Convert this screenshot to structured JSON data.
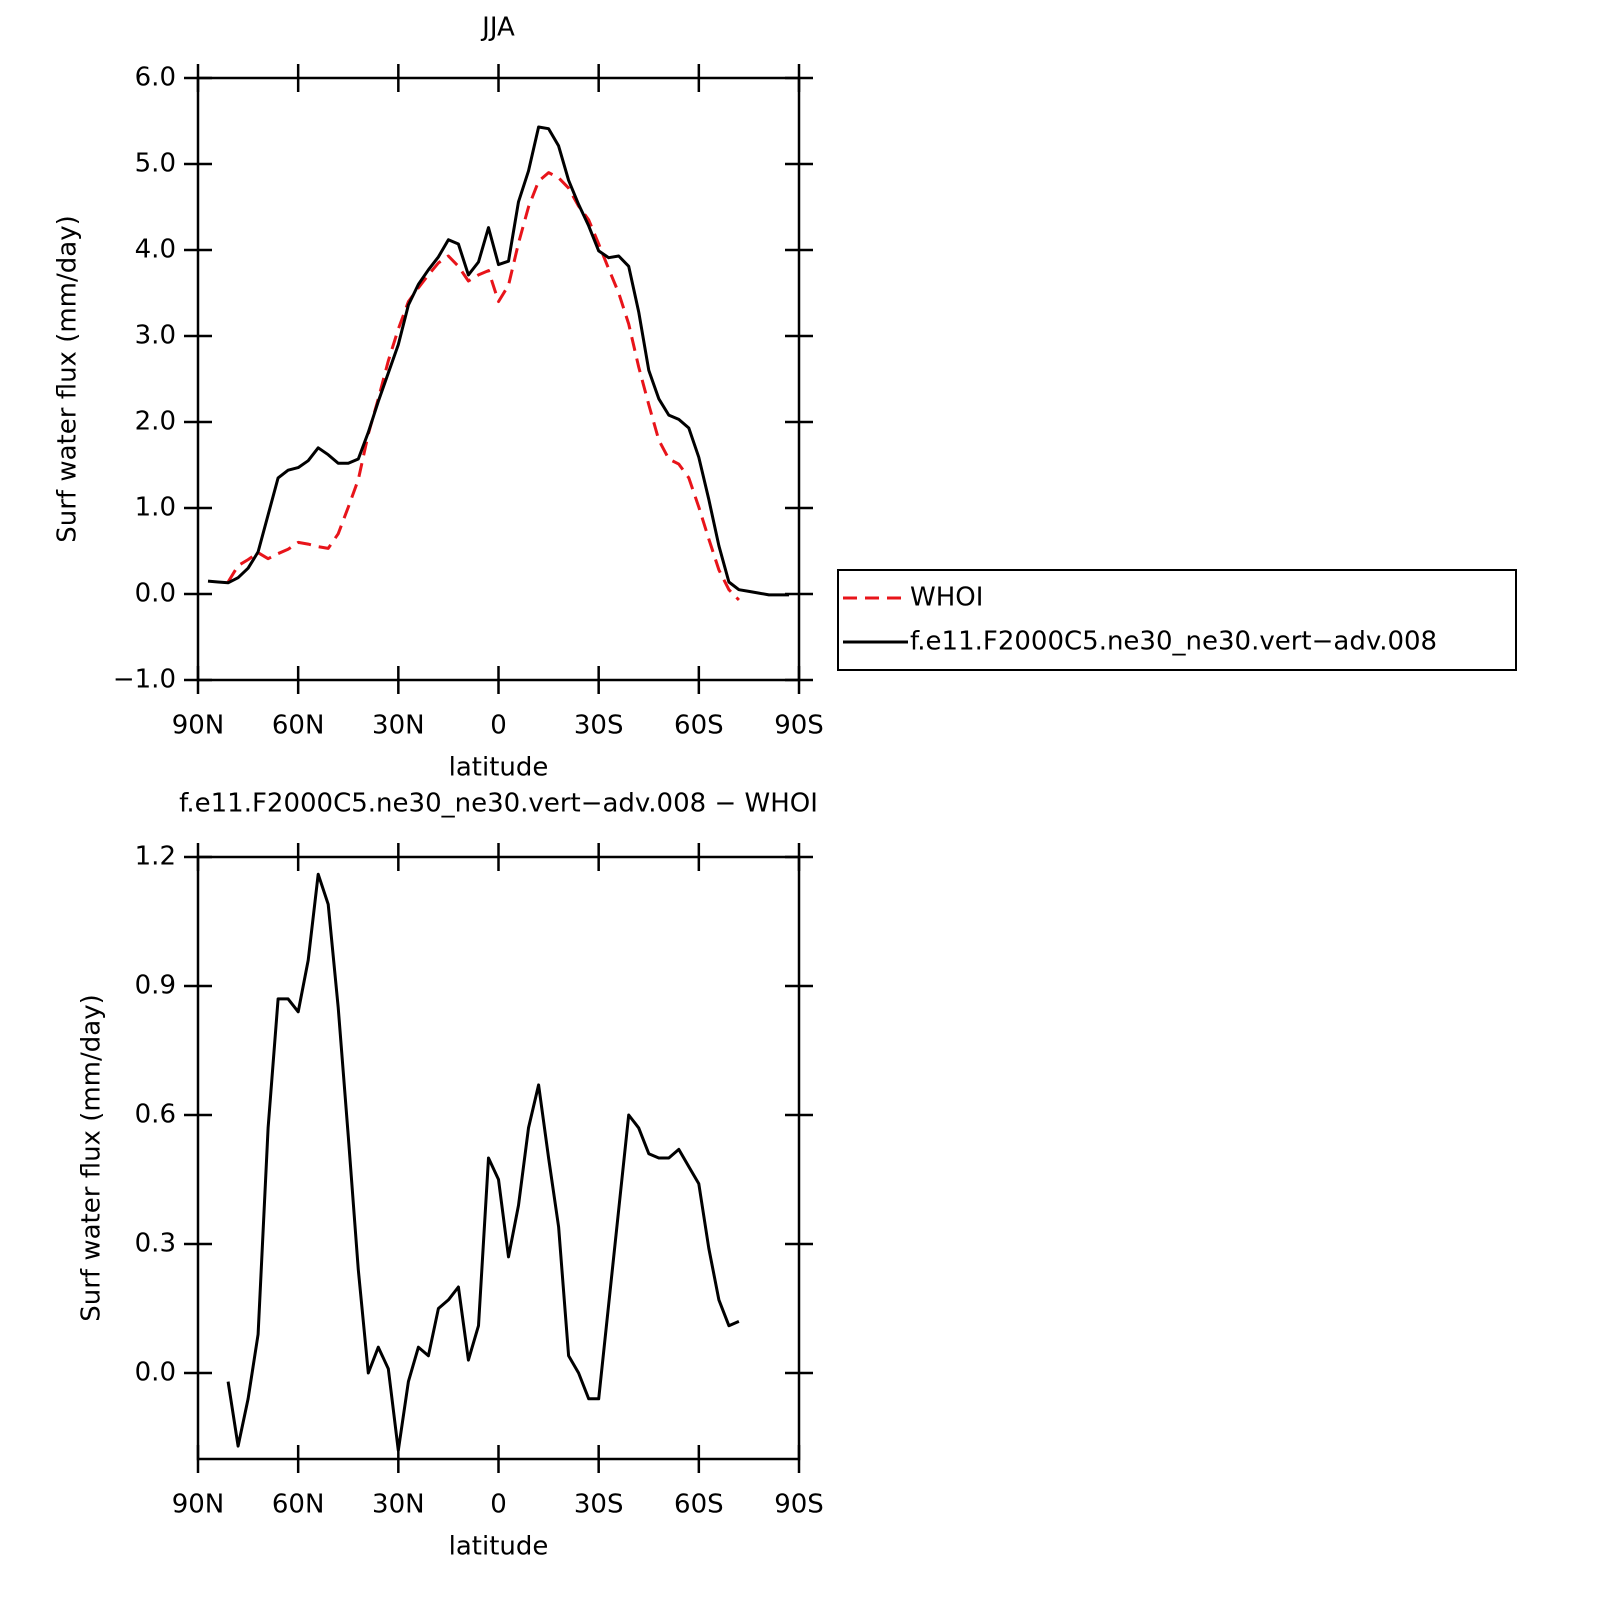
{
  "chart_data": [
    {
      "type": "line",
      "title": "JJA",
      "xlabel": "latitude",
      "ylabel": "Surf water flux (mm/day)",
      "x": [
        87,
        84,
        81,
        78,
        75,
        72,
        69,
        66,
        63,
        60,
        57,
        54,
        51,
        48,
        45,
        42,
        39,
        36,
        33,
        30,
        27,
        24,
        21,
        18,
        15,
        12,
        9,
        6,
        3,
        0,
        -3,
        -6,
        -9,
        -12,
        -15,
        -18,
        -21,
        -24,
        -27,
        -30,
        -33,
        -36,
        -39,
        -42,
        -45,
        -48,
        -51,
        -54,
        -57,
        -60,
        -63,
        -66,
        -69,
        -72,
        -75,
        -78,
        -81,
        -84,
        -87
      ],
      "series": [
        {
          "name": "WHOI",
          "color": "#e8141a",
          "dashed": true,
          "values": [
            null,
            null,
            0.14,
            0.33,
            0.4,
            0.48,
            0.41,
            0.47,
            0.52,
            0.6,
            0.58,
            0.55,
            0.53,
            0.7,
            1.01,
            1.33,
            1.86,
            2.27,
            2.71,
            3.08,
            3.4,
            3.56,
            3.71,
            3.85,
            3.93,
            3.81,
            3.64,
            3.71,
            3.76,
            3.4,
            3.59,
            4.08,
            4.5,
            4.8,
            4.9,
            4.84,
            4.72,
            4.51,
            4.35,
            4.07,
            3.78,
            3.5,
            3.14,
            2.64,
            2.2,
            1.79,
            1.57,
            1.51,
            1.35,
            1.01,
            0.64,
            0.28,
            0.05,
            -0.07,
            null,
            null,
            null,
            null,
            null
          ]
        },
        {
          "name": "f.e11.F2000C5.ne30_ne30.vert−adv.008",
          "color": "#000000",
          "dashed": false,
          "values": [
            0.15,
            0.14,
            0.13,
            0.19,
            0.3,
            0.49,
            0.92,
            1.35,
            1.44,
            1.47,
            1.55,
            1.7,
            1.62,
            1.52,
            1.52,
            1.57,
            1.88,
            2.24,
            2.57,
            2.9,
            3.36,
            3.6,
            3.77,
            3.92,
            4.12,
            4.07,
            3.71,
            3.86,
            4.26,
            3.83,
            3.87,
            4.56,
            4.92,
            5.43,
            5.41,
            5.21,
            4.81,
            4.53,
            4.28,
            3.99,
            3.91,
            3.93,
            3.81,
            3.28,
            2.6,
            2.27,
            2.08,
            2.03,
            1.93,
            1.59,
            1.1,
            0.56,
            0.14,
            0.05,
            0.03,
            0.01,
            -0.01,
            -0.01,
            -0.01
          ]
        }
      ],
      "xlim": [
        90,
        -90
      ],
      "xticks": [
        {
          "value": 90,
          "label": "90N"
        },
        {
          "value": 60,
          "label": "60N"
        },
        {
          "value": 30,
          "label": "30N"
        },
        0,
        {
          "value": -30,
          "label": "30S"
        },
        {
          "value": -60,
          "label": "60S"
        },
        {
          "value": -90,
          "label": "90S"
        }
      ],
      "ylim": [
        -1,
        6
      ],
      "yticks": [
        {
          "value": 6,
          "label": "6.0"
        },
        {
          "value": 5,
          "label": "5.0"
        },
        {
          "value": 4,
          "label": "4.0"
        },
        {
          "value": 3,
          "label": "3.0"
        },
        {
          "value": 2,
          "label": "2.0"
        },
        {
          "value": 1,
          "label": "1.0"
        },
        {
          "value": 0,
          "label": "0.0"
        },
        {
          "value": -1,
          "label": "−1.0"
        }
      ],
      "legend": "outside-right"
    },
    {
      "type": "line",
      "title": "f.e11.F2000C5.ne30_ne30.vert−adv.008 − WHOI",
      "xlabel": "latitude",
      "ylabel": "Surf water flux (mm/day)",
      "x": [
        81,
        78,
        75,
        72,
        69,
        66,
        63,
        60,
        57,
        54,
        51,
        48,
        45,
        42,
        39,
        36,
        33,
        30,
        27,
        24,
        21,
        18,
        15,
        12,
        9,
        6,
        3,
        0,
        -3,
        -6,
        -9,
        -12,
        -15,
        -18,
        -21,
        -24,
        -27,
        -30,
        -33,
        -36,
        -39,
        -42,
        -45,
        -48,
        -51,
        -54,
        -57,
        -60,
        -63,
        -66,
        -69,
        -72
      ],
      "color": "#000000",
      "values": [
        -0.02,
        -0.17,
        -0.06,
        0.09,
        0.57,
        0.87,
        0.87,
        0.84,
        0.96,
        1.16,
        1.09,
        0.85,
        0.55,
        0.24,
        0.0,
        0.06,
        0.01,
        -0.18,
        -0.02,
        0.06,
        0.04,
        0.15,
        0.17,
        0.2,
        0.03,
        0.11,
        0.5,
        0.45,
        0.27,
        0.39,
        0.57,
        0.67,
        0.5,
        0.34,
        0.04,
        0.0,
        -0.06,
        -0.06,
        0.16,
        0.38,
        0.6,
        0.57,
        0.51,
        0.5,
        0.5,
        0.52,
        0.48,
        0.44,
        0.29,
        0.17,
        0.11,
        0.12
      ],
      "xlim": [
        90,
        -90
      ],
      "xticks": [
        {
          "value": 90,
          "label": "90N"
        },
        {
          "value": 60,
          "label": "60N"
        },
        {
          "value": 30,
          "label": "30N"
        },
        0,
        {
          "value": -30,
          "label": "30S"
        },
        {
          "value": -60,
          "label": "60S"
        },
        {
          "value": -90,
          "label": "90S"
        }
      ],
      "ylim": [
        -0.2,
        1.2
      ],
      "yticks": [
        {
          "value": 1.2,
          "label": "1.2"
        },
        {
          "value": 0.9,
          "label": "0.9"
        },
        {
          "value": 0.6,
          "label": "0.6"
        },
        {
          "value": 0.3,
          "label": "0.3"
        },
        {
          "value": 0,
          "label": "0.0"
        }
      ]
    }
  ]
}
